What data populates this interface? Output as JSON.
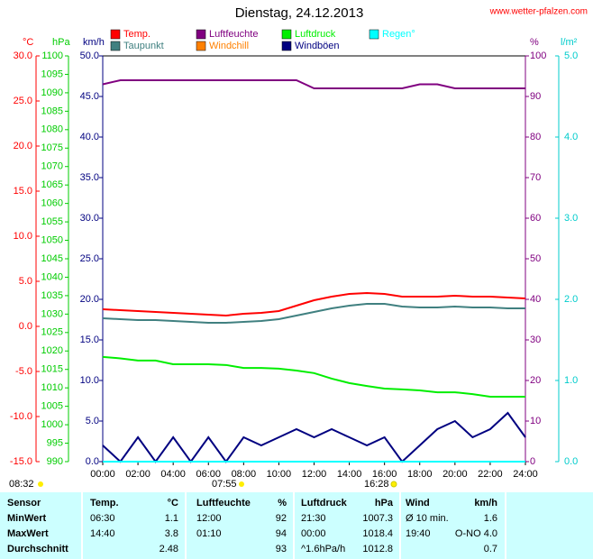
{
  "chart_data": {
    "type": "line",
    "title": "Dienstag, 24.12.2013",
    "source": "www.wetter-pfalzen.com",
    "x": [
      0,
      1,
      2,
      3,
      4,
      5,
      6,
      7,
      8,
      9,
      10,
      11,
      12,
      13,
      14,
      15,
      16,
      17,
      18,
      19,
      20,
      21,
      22,
      23,
      24
    ],
    "xlim": [
      0,
      24
    ],
    "xticks": [
      {
        "value": 0,
        "label": "00:00"
      },
      {
        "value": 2,
        "label": "02:00"
      },
      {
        "value": 4,
        "label": "04:00"
      },
      {
        "value": 6,
        "label": "06:00"
      },
      {
        "value": 8,
        "label": "08:00"
      },
      {
        "value": 10,
        "label": "10:00"
      },
      {
        "value": 12,
        "label": "12:00"
      },
      {
        "value": 14,
        "label": "14:00"
      },
      {
        "value": 16,
        "label": "16:00"
      },
      {
        "value": 18,
        "label": "18:00"
      },
      {
        "value": 20,
        "label": "20:00"
      },
      {
        "value": 22,
        "label": "22:00"
      },
      {
        "value": 24,
        "label": "24:00"
      }
    ],
    "grid": false,
    "axes": [
      {
        "label": "°C",
        "color": "#ff0000",
        "lim": [
          -15,
          30
        ],
        "ticks": [
          {
            "value": -15,
            "label": "-15.0"
          },
          {
            "value": -10,
            "label": "-10.0"
          },
          {
            "value": -5,
            "label": "-5.0"
          },
          {
            "value": 0,
            "label": "0.0"
          },
          {
            "value": 5,
            "label": "5.0"
          },
          {
            "value": 10,
            "label": "10.0"
          },
          {
            "value": 15,
            "label": "15.0"
          },
          {
            "value": 20,
            "label": "20.0"
          },
          {
            "value": 25,
            "label": "25.0"
          },
          {
            "value": 30,
            "label": "30.0"
          }
        ]
      },
      {
        "label": "hPa",
        "color": "#00cc00",
        "lim": [
          990,
          1100
        ],
        "ticks": [
          990,
          995,
          1000,
          1005,
          1010,
          1015,
          1020,
          1025,
          1030,
          1035,
          1040,
          1045,
          1050,
          1055,
          1060,
          1065,
          1070,
          1075,
          1080,
          1085,
          1090,
          1095,
          1100
        ]
      },
      {
        "label": "km/h",
        "color": "#000080",
        "lim": [
          0,
          50
        ],
        "ticks": [
          {
            "value": 0,
            "label": "0.0"
          },
          {
            "value": 5,
            "label": "5.0"
          },
          {
            "value": 10,
            "label": "10.0"
          },
          {
            "value": 15,
            "label": "15.0"
          },
          {
            "value": 20,
            "label": "20.0"
          },
          {
            "value": 25,
            "label": "25.0"
          },
          {
            "value": 30,
            "label": "30.0"
          },
          {
            "value": 35,
            "label": "35.0"
          },
          {
            "value": 40,
            "label": "40.0"
          },
          {
            "value": 45,
            "label": "45.0"
          },
          {
            "value": 50,
            "label": "50.0"
          }
        ]
      },
      {
        "label": "%",
        "color": "#800080",
        "lim": [
          0,
          100
        ],
        "ticks": [
          0,
          10,
          20,
          30,
          40,
          50,
          60,
          70,
          80,
          90,
          100
        ]
      },
      {
        "label": "l/m²",
        "color": "#00cccc",
        "lim": [
          0,
          5
        ],
        "ticks": [
          {
            "value": 0,
            "label": "0.0"
          },
          {
            "value": 1,
            "label": "1.0"
          },
          {
            "value": 2,
            "label": "2.0"
          },
          {
            "value": 3,
            "label": "3.0"
          },
          {
            "value": 4,
            "label": "4.0"
          },
          {
            "value": 5,
            "label": "5.0"
          }
        ]
      }
    ],
    "series": [
      {
        "name": "Temp.",
        "color": "#ff0000",
        "axis": 0,
        "values": [
          1.9,
          1.8,
          1.7,
          1.6,
          1.5,
          1.4,
          1.3,
          1.2,
          1.4,
          1.5,
          1.7,
          2.3,
          2.9,
          3.3,
          3.6,
          3.7,
          3.6,
          3.3,
          3.3,
          3.3,
          3.4,
          3.3,
          3.3,
          3.2,
          3.1
        ]
      },
      {
        "name": "Taupunkt",
        "color": "#408080",
        "axis": 0,
        "values": [
          0.9,
          0.8,
          0.7,
          0.7,
          0.6,
          0.5,
          0.4,
          0.4,
          0.5,
          0.6,
          0.8,
          1.2,
          1.6,
          2.0,
          2.3,
          2.5,
          2.5,
          2.2,
          2.1,
          2.1,
          2.2,
          2.1,
          2.1,
          2.0,
          2.0
        ]
      },
      {
        "name": "Luftfeuchte",
        "color": "#800080",
        "axis": 3,
        "values": [
          93,
          94,
          94,
          94,
          94,
          94,
          94,
          94,
          94,
          94,
          94,
          94,
          92,
          92,
          92,
          92,
          92,
          92,
          93,
          93,
          92,
          92,
          92,
          92,
          92
        ]
      },
      {
        "name": "Windchill",
        "color": "#ff8000",
        "axis": 0,
        "values": [
          null,
          null,
          null,
          null,
          null,
          null,
          null,
          null,
          null,
          null,
          null,
          null,
          null,
          null,
          null,
          null,
          null,
          null,
          null,
          null,
          null,
          null,
          null,
          null,
          null
        ]
      },
      {
        "name": "Luftdruck",
        "color": "#00ee00",
        "axis": 1,
        "values": [
          1018.4,
          1018.0,
          1017.4,
          1017.4,
          1016.4,
          1016.4,
          1016.4,
          1016.2,
          1015.4,
          1015.4,
          1015.2,
          1014.7,
          1014.0,
          1012.5,
          1011.3,
          1010.5,
          1009.8,
          1009.6,
          1009.3,
          1008.8,
          1008.8,
          1008.3,
          1007.6,
          1007.6,
          1007.6
        ]
      },
      {
        "name": "Windböen",
        "color": "#000080",
        "axis": 2,
        "values": [
          2,
          0,
          3,
          0,
          3,
          0,
          3,
          0,
          3,
          2,
          3,
          4,
          3,
          4,
          3,
          2,
          3,
          0,
          2,
          4,
          5,
          3,
          4,
          6,
          3
        ]
      },
      {
        "name": "Regen°",
        "color": "#00ffff",
        "axis": 4,
        "values": [
          0,
          0,
          0,
          0,
          0,
          0,
          0,
          0,
          0,
          0,
          0,
          0,
          0,
          0,
          0,
          0,
          0,
          0,
          0,
          0,
          0,
          0,
          0,
          0,
          0
        ]
      }
    ],
    "annotations": [
      "08:32",
      "07:55",
      "16:28"
    ]
  },
  "table": {
    "header": [
      "Sensor",
      "Temp.",
      "°C",
      "Luftfeuchte",
      "%",
      "Luftdruck",
      "hPa",
      "Wind",
      "km/h"
    ],
    "rows": [
      [
        "MinWert",
        "06:30",
        "1.1",
        "12:00",
        "92",
        "21:30",
        "1007.3",
        "Ø 10 min.",
        "1.6"
      ],
      [
        "MaxWert",
        "14:40",
        "3.8",
        "01:10",
        "94",
        "00:00",
        "1018.4",
        "19:40",
        "O-NO 4.0"
      ],
      [
        "Durchschnitt",
        null,
        "2.48",
        null,
        "93",
        "^1.6hPa/h",
        "1012.8",
        null,
        "0.7"
      ]
    ]
  }
}
